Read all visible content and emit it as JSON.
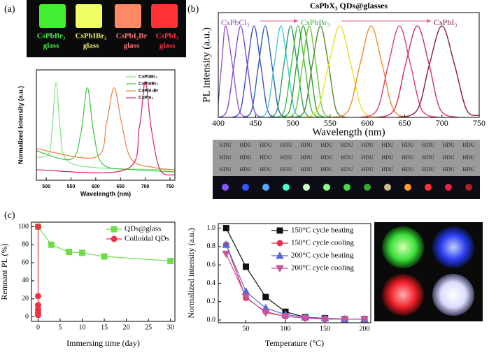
{
  "panel_labels": [
    "(a)",
    "(b)",
    "(c)"
  ],
  "photo_a": {
    "labels": [
      [
        "CsPbBr₃",
        "glass"
      ],
      [
        "CsPbIBr₂",
        "glass"
      ],
      [
        "CsPbI₂Br",
        "glass"
      ],
      [
        "CsPbI₃",
        "glass"
      ]
    ]
  },
  "photo_b": {
    "label": "HDU"
  },
  "chart_data": [
    {
      "type": "line",
      "smooth": true,
      "x_label": "Wavelength (nm)",
      "y_label": "Normalized intensity (a.u.)",
      "xlim": [
        480,
        760
      ],
      "xticks": [
        500,
        550,
        600,
        650,
        700,
        750
      ],
      "ylim": [
        0,
        1.05
      ],
      "legend": "upper right",
      "series": [
        {
          "name": "CsPbBr₃",
          "color": "#7fe27f",
          "x": [
            480,
            505,
            512,
            520,
            528,
            540,
            600,
            760
          ],
          "values": [
            0.22,
            0.25,
            0.5,
            0.93,
            0.5,
            0.2,
            0.12,
            0.1
          ]
        },
        {
          "name": "CsPbIBr₂",
          "color": "#3ec43e",
          "x": [
            480,
            550,
            570,
            583,
            596,
            615,
            680,
            760
          ],
          "values": [
            0.28,
            0.2,
            0.45,
            0.88,
            0.45,
            0.15,
            0.1,
            0.08
          ]
        },
        {
          "name": "CsPbI₂Br",
          "color": "#f08040",
          "x": [
            480,
            600,
            622,
            637,
            652,
            672,
            720,
            760
          ],
          "values": [
            0.3,
            0.22,
            0.55,
            0.88,
            0.55,
            0.2,
            0.12,
            0.1
          ]
        },
        {
          "name": "CsPbI₃",
          "color": "#e0205a",
          "x": [
            480,
            660,
            688,
            700,
            712,
            730,
            760
          ],
          "values": [
            0.1,
            0.1,
            0.5,
            0.94,
            0.5,
            0.1,
            0.05
          ]
        }
      ]
    },
    {
      "type": "line",
      "smooth": true,
      "title": "CsPbX₃ QDs@glasses",
      "x_label": "Wavelength (nm)",
      "y_label": "PL intensity (a.u.)",
      "xlim": [
        400,
        750
      ],
      "xticks": [
        400,
        450,
        500,
        550,
        600,
        650,
        700,
        750
      ],
      "ylim": [
        0,
        1.1
      ],
      "annotations": [
        {
          "text": "CsPbCl₃",
          "color": "#9b3fc0"
        },
        {
          "text": "CsPbBr₃",
          "color": "#33aa33"
        },
        {
          "text": "CsPbI₃",
          "color": "#8a1a30"
        }
      ],
      "series": [
        {
          "color": "#9b59d0",
          "x": [
            400,
            405,
            410,
            419,
            428,
            440
          ],
          "values": [
            0.15,
            0.6,
            0.96,
            0.55,
            0.08,
            0
          ]
        },
        {
          "color": "#7a4fd8",
          "x": [
            400,
            412,
            421,
            430,
            439,
            448,
            460
          ],
          "values": [
            0,
            0.08,
            0.55,
            0.96,
            0.55,
            0.08,
            0
          ]
        },
        {
          "color": "#3f4fcf",
          "x": [
            418,
            430,
            439,
            448,
            457,
            466,
            478
          ],
          "values": [
            0,
            0.08,
            0.55,
            0.96,
            0.55,
            0.08,
            0
          ]
        },
        {
          "color": "#2d5fb5",
          "x": [
            433,
            445,
            454,
            463,
            472,
            481,
            493
          ],
          "values": [
            0,
            0.08,
            0.55,
            0.96,
            0.55,
            0.08,
            0
          ]
        },
        {
          "color": "#45c8e0",
          "x": [
            454,
            466,
            475,
            484,
            493,
            502,
            514
          ],
          "values": [
            0,
            0.08,
            0.55,
            0.96,
            0.55,
            0.08,
            0
          ]
        },
        {
          "color": "#2aa06a",
          "x": [
            467,
            479,
            488,
            497,
            506,
            515,
            527
          ],
          "values": [
            0,
            0.08,
            0.55,
            0.96,
            0.55,
            0.08,
            0
          ]
        },
        {
          "color": "#3bbf3b",
          "x": [
            477,
            489,
            498,
            507,
            516,
            525,
            537
          ],
          "values": [
            0,
            0.08,
            0.55,
            0.96,
            0.55,
            0.08,
            0
          ]
        },
        {
          "color": "#22aa22",
          "x": [
            484,
            496,
            505,
            514,
            523,
            532,
            544
          ],
          "values": [
            0,
            0.08,
            0.55,
            0.96,
            0.55,
            0.08,
            0
          ]
        },
        {
          "color": "#66cc33",
          "x": [
            492,
            504,
            513,
            522,
            531,
            540,
            552
          ],
          "values": [
            0,
            0.08,
            0.55,
            0.96,
            0.55,
            0.08,
            0
          ]
        },
        {
          "color": "#558833",
          "x": [
            502,
            516,
            526,
            537,
            548,
            558,
            572
          ],
          "values": [
            0,
            0.08,
            0.55,
            0.96,
            0.55,
            0.08,
            0
          ]
        },
        {
          "color": "#e6e020",
          "x": [
            513,
            533,
            548,
            563,
            578,
            593,
            613
          ],
          "values": [
            0,
            0.08,
            0.55,
            0.96,
            0.55,
            0.08,
            0
          ]
        },
        {
          "color": "#f08a30",
          "x": [
            553,
            575,
            590,
            605,
            620,
            635,
            657
          ],
          "values": [
            0,
            0.08,
            0.55,
            0.96,
            0.55,
            0.08,
            0
          ]
        },
        {
          "color": "#e8357a",
          "x": [
            590,
            613,
            628,
            643,
            658,
            673,
            696
          ],
          "values": [
            0,
            0.08,
            0.55,
            0.96,
            0.55,
            0.08,
            0
          ]
        },
        {
          "color": "#d8285a",
          "x": [
            612,
            636,
            651,
            667,
            683,
            698,
            722
          ],
          "values": [
            0,
            0.08,
            0.55,
            0.96,
            0.55,
            0.08,
            0
          ]
        },
        {
          "color": "#8a1a30",
          "x": [
            640,
            667,
            683,
            700,
            717,
            733,
            750
          ],
          "values": [
            0,
            0.08,
            0.55,
            0.96,
            0.55,
            0.08,
            0.02
          ]
        }
      ]
    },
    {
      "type": "line",
      "x_label": "Immersing time (day)",
      "y_label": "Remnant PL (%)",
      "xlim": [
        -1.5,
        31
      ],
      "xticks": [
        0,
        5,
        10,
        15,
        20,
        25,
        30
      ],
      "ylim": [
        -5,
        105
      ],
      "yticks": [
        0,
        20,
        40,
        60,
        80,
        100
      ],
      "legend": "upper right",
      "series": [
        {
          "name": "QDs@glass",
          "color": "#6fdc4a",
          "marker": "square",
          "x": [
            0,
            3,
            7,
            10,
            15,
            30
          ],
          "values": [
            100,
            80,
            72,
            71,
            67,
            62
          ]
        },
        {
          "name": "Colloidal QDs",
          "color": "#ee3344",
          "marker": "circle",
          "x": [
            0,
            0,
            0,
            0,
            0,
            0
          ],
          "values": [
            100,
            23,
            13,
            8,
            5,
            2
          ]
        }
      ]
    },
    {
      "type": "line",
      "x_label": "Temperature (°C)",
      "y_label": "Normalized intensity (a.u.)",
      "x": [
        25,
        50,
        75,
        100,
        125,
        150,
        175,
        200
      ],
      "xlim": [
        15,
        208
      ],
      "xticks": [
        50,
        100,
        150,
        200
      ],
      "ylim": [
        -0.03,
        1.05
      ],
      "yticks": [
        {
          "value": 0,
          "label": "0.0"
        },
        {
          "value": 0.2,
          "label": "0.2"
        },
        {
          "value": 0.4,
          "label": "0.4"
        },
        {
          "value": 0.6,
          "label": "0.6"
        },
        {
          "value": 0.8,
          "label": "0.8"
        },
        {
          "value": 1,
          "label": "1.0"
        }
      ],
      "legend": "upper right",
      "series": [
        {
          "name": "150°C cycle heating",
          "color": "#111111",
          "marker": "square",
          "values": [
            1.0,
            0.58,
            0.25,
            0.09,
            0.03,
            0.02,
            0.01,
            0.01
          ]
        },
        {
          "name": "150°C cycle cooling",
          "color": "#e8334a",
          "marker": "circle",
          "values": [
            0.82,
            0.24,
            0.09,
            0.04,
            0.02,
            0.01,
            0.01,
            0.01
          ]
        },
        {
          "name": "200°C cycle heating",
          "color": "#5566dd",
          "marker": "triangle-up",
          "values": [
            0.82,
            0.31,
            0.13,
            0.06,
            0.03,
            0.02,
            0.01,
            0.01
          ]
        },
        {
          "name": "200°C cycle cooling",
          "color": "#c8559a",
          "marker": "triangle-down",
          "values": [
            0.72,
            0.25,
            0.08,
            0.04,
            0.02,
            0.01,
            0.01,
            0.01
          ]
        }
      ]
    }
  ]
}
